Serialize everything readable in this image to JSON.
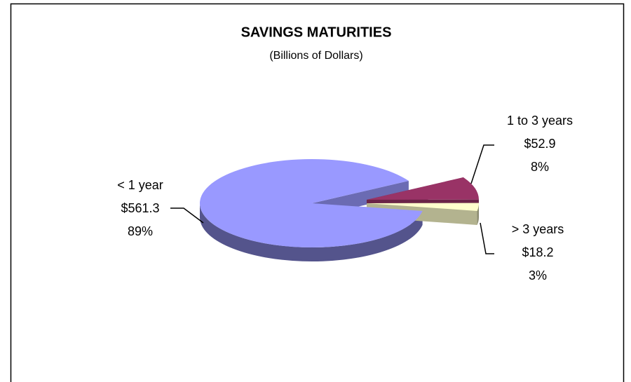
{
  "chart_data": {
    "type": "pie",
    "title": "SAVINGS MATURITIES",
    "subtitle": "(Billions of Dollars)",
    "categories": [
      "< 1 year",
      "1 to 3 years",
      "> 3 years"
    ],
    "values": [
      561.3,
      52.9,
      18.2
    ],
    "value_labels": [
      "$561.3",
      "$52.9",
      "$18.2"
    ],
    "percent_labels": [
      "89%",
      "8%",
      "3%"
    ],
    "colors": [
      "#9999ff",
      "#993366",
      "#ffffcc"
    ]
  }
}
